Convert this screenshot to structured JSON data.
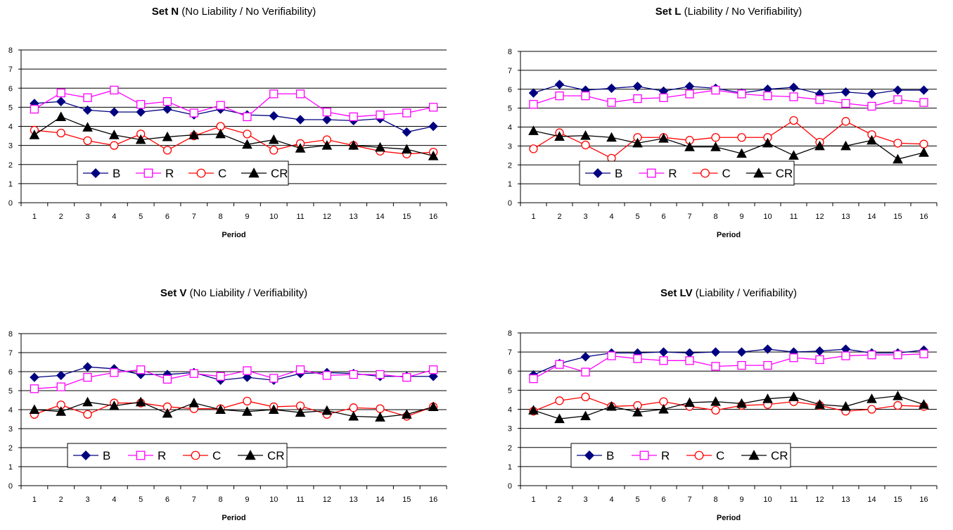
{
  "colors": {
    "B": "#000080",
    "R": "#ff00ff",
    "C": "#ff0000",
    "CR": "#000000",
    "grid": "#000000",
    "background": "#ffffff"
  },
  "chart_data": [
    {
      "type": "line",
      "title_bold": "Set N",
      "title_rest": " (No Liability / No Verifiability)",
      "xlabel": "Period",
      "ylabel": "",
      "categories": [
        "1",
        "2",
        "3",
        "4",
        "5",
        "6",
        "7",
        "8",
        "9",
        "10",
        "11",
        "12",
        "13",
        "14",
        "15",
        "16"
      ],
      "ylim": [
        0,
        8
      ],
      "yticks": [
        "0",
        "1",
        "2",
        "3",
        "4",
        "5",
        "6",
        "7",
        "8"
      ],
      "grid": true,
      "legend_position": "bottom-left",
      "series": [
        {
          "name": "B",
          "values": [
            5.2,
            5.3,
            4.85,
            4.75,
            4.75,
            4.9,
            4.6,
            4.9,
            4.6,
            4.55,
            4.35,
            4.35,
            4.3,
            4.4,
            3.7,
            4.0
          ]
        },
        {
          "name": "R",
          "values": [
            4.9,
            5.75,
            5.5,
            5.9,
            5.15,
            5.3,
            4.7,
            5.1,
            4.5,
            5.7,
            5.7,
            4.75,
            4.5,
            4.6,
            4.7,
            5.0
          ]
        },
        {
          "name": "C",
          "values": [
            3.8,
            3.65,
            3.25,
            3.0,
            3.6,
            2.75,
            3.5,
            4.0,
            3.6,
            2.75,
            3.1,
            3.3,
            3.0,
            2.7,
            2.55,
            2.65
          ]
        },
        {
          "name": "CR",
          "values": [
            3.55,
            4.5,
            3.95,
            3.55,
            3.3,
            3.45,
            3.55,
            3.6,
            3.05,
            3.3,
            2.85,
            3.0,
            3.0,
            2.9,
            2.8,
            2.45
          ]
        }
      ]
    },
    {
      "type": "line",
      "title_bold": "Set L",
      "title_rest": " (Liability / No Verifiability)",
      "xlabel": "Period",
      "ylabel": "",
      "categories": [
        "1",
        "2",
        "3",
        "4",
        "5",
        "6",
        "7",
        "8",
        "9",
        "10",
        "11",
        "12",
        "13",
        "14",
        "15",
        "16"
      ],
      "ylim": [
        0,
        8
      ],
      "yticks": [
        "0",
        "1",
        "2",
        "3",
        "4",
        "5",
        "6",
        "7",
        "8"
      ],
      "grid": true,
      "legend_position": "bottom-left",
      "series": [
        {
          "name": "B",
          "values": [
            5.8,
            6.25,
            5.95,
            6.05,
            6.15,
            5.9,
            6.15,
            6.05,
            5.8,
            6.0,
            6.1,
            5.75,
            5.85,
            5.75,
            5.95,
            5.95
          ]
        },
        {
          "name": "R",
          "values": [
            5.2,
            5.65,
            5.65,
            5.3,
            5.5,
            5.55,
            5.75,
            5.95,
            5.75,
            5.65,
            5.6,
            5.45,
            5.25,
            5.1,
            5.45,
            5.3
          ]
        },
        {
          "name": "C",
          "values": [
            2.85,
            3.7,
            3.05,
            2.35,
            3.45,
            3.45,
            3.3,
            3.45,
            3.45,
            3.45,
            4.35,
            3.2,
            4.3,
            3.6,
            3.15,
            3.1
          ]
        },
        {
          "name": "CR",
          "values": [
            3.8,
            3.5,
            3.55,
            3.45,
            3.15,
            3.4,
            2.95,
            2.95,
            2.6,
            3.15,
            2.5,
            3.0,
            3.0,
            3.3,
            2.3,
            2.65
          ]
        }
      ]
    },
    {
      "type": "line",
      "title_bold": "Set V",
      "title_rest": " (No Liability / Verifiability)",
      "xlabel": "Period",
      "ylabel": "",
      "categories": [
        "1",
        "2",
        "3",
        "4",
        "5",
        "6",
        "7",
        "8",
        "9",
        "10",
        "11",
        "12",
        "13",
        "14",
        "15",
        "16"
      ],
      "ylim": [
        0,
        8
      ],
      "yticks": [
        "0",
        "1",
        "2",
        "3",
        "4",
        "5",
        "6",
        "7",
        "8"
      ],
      "grid": true,
      "legend_position": "bottom-left",
      "series": [
        {
          "name": "B",
          "values": [
            5.7,
            5.8,
            6.25,
            6.15,
            5.85,
            5.85,
            5.95,
            5.55,
            5.7,
            5.55,
            5.9,
            5.95,
            5.9,
            5.75,
            5.75,
            5.75
          ]
        },
        {
          "name": "R",
          "values": [
            5.1,
            5.2,
            5.7,
            5.95,
            6.1,
            5.6,
            5.9,
            5.75,
            6.05,
            5.65,
            6.1,
            5.8,
            5.85,
            5.85,
            5.7,
            6.1
          ]
        },
        {
          "name": "C",
          "values": [
            3.75,
            4.25,
            3.75,
            4.35,
            4.35,
            4.15,
            4.05,
            4.05,
            4.45,
            4.15,
            4.2,
            3.75,
            4.1,
            4.05,
            3.65,
            4.15
          ]
        },
        {
          "name": "CR",
          "values": [
            4.0,
            3.9,
            4.4,
            4.2,
            4.4,
            3.8,
            4.35,
            4.0,
            3.9,
            4.0,
            3.85,
            3.95,
            3.65,
            3.6,
            3.75,
            4.15
          ]
        }
      ]
    },
    {
      "type": "line",
      "title_bold": "Set LV",
      "title_rest": " (Liability / Verifiability)",
      "xlabel": "Period",
      "ylabel": "",
      "categories": [
        "1",
        "2",
        "3",
        "4",
        "5",
        "6",
        "7",
        "8",
        "9",
        "10",
        "11",
        "12",
        "13",
        "14",
        "15",
        "16"
      ],
      "ylim": [
        0,
        8
      ],
      "yticks": [
        "0",
        "1",
        "2",
        "3",
        "4",
        "5",
        "6",
        "7",
        "8"
      ],
      "grid": true,
      "legend_position": "bottom-left",
      "series": [
        {
          "name": "B",
          "values": [
            5.8,
            6.4,
            6.75,
            6.95,
            6.95,
            7.0,
            6.95,
            7.0,
            7.0,
            7.15,
            7.0,
            7.05,
            7.15,
            6.95,
            6.95,
            7.1
          ]
        },
        {
          "name": "R",
          "values": [
            5.6,
            6.35,
            5.95,
            6.8,
            6.65,
            6.55,
            6.55,
            6.25,
            6.3,
            6.3,
            6.7,
            6.6,
            6.8,
            6.85,
            6.85,
            6.9
          ]
        },
        {
          "name": "C",
          "values": [
            3.9,
            4.45,
            4.65,
            4.15,
            4.2,
            4.4,
            4.15,
            3.95,
            4.2,
            4.25,
            4.4,
            4.2,
            3.9,
            4.0,
            4.2,
            4.15
          ]
        },
        {
          "name": "CR",
          "values": [
            3.95,
            3.5,
            3.65,
            4.15,
            3.85,
            4.0,
            4.35,
            4.4,
            4.3,
            4.55,
            4.65,
            4.25,
            4.15,
            4.55,
            4.7,
            4.25
          ]
        }
      ]
    }
  ]
}
